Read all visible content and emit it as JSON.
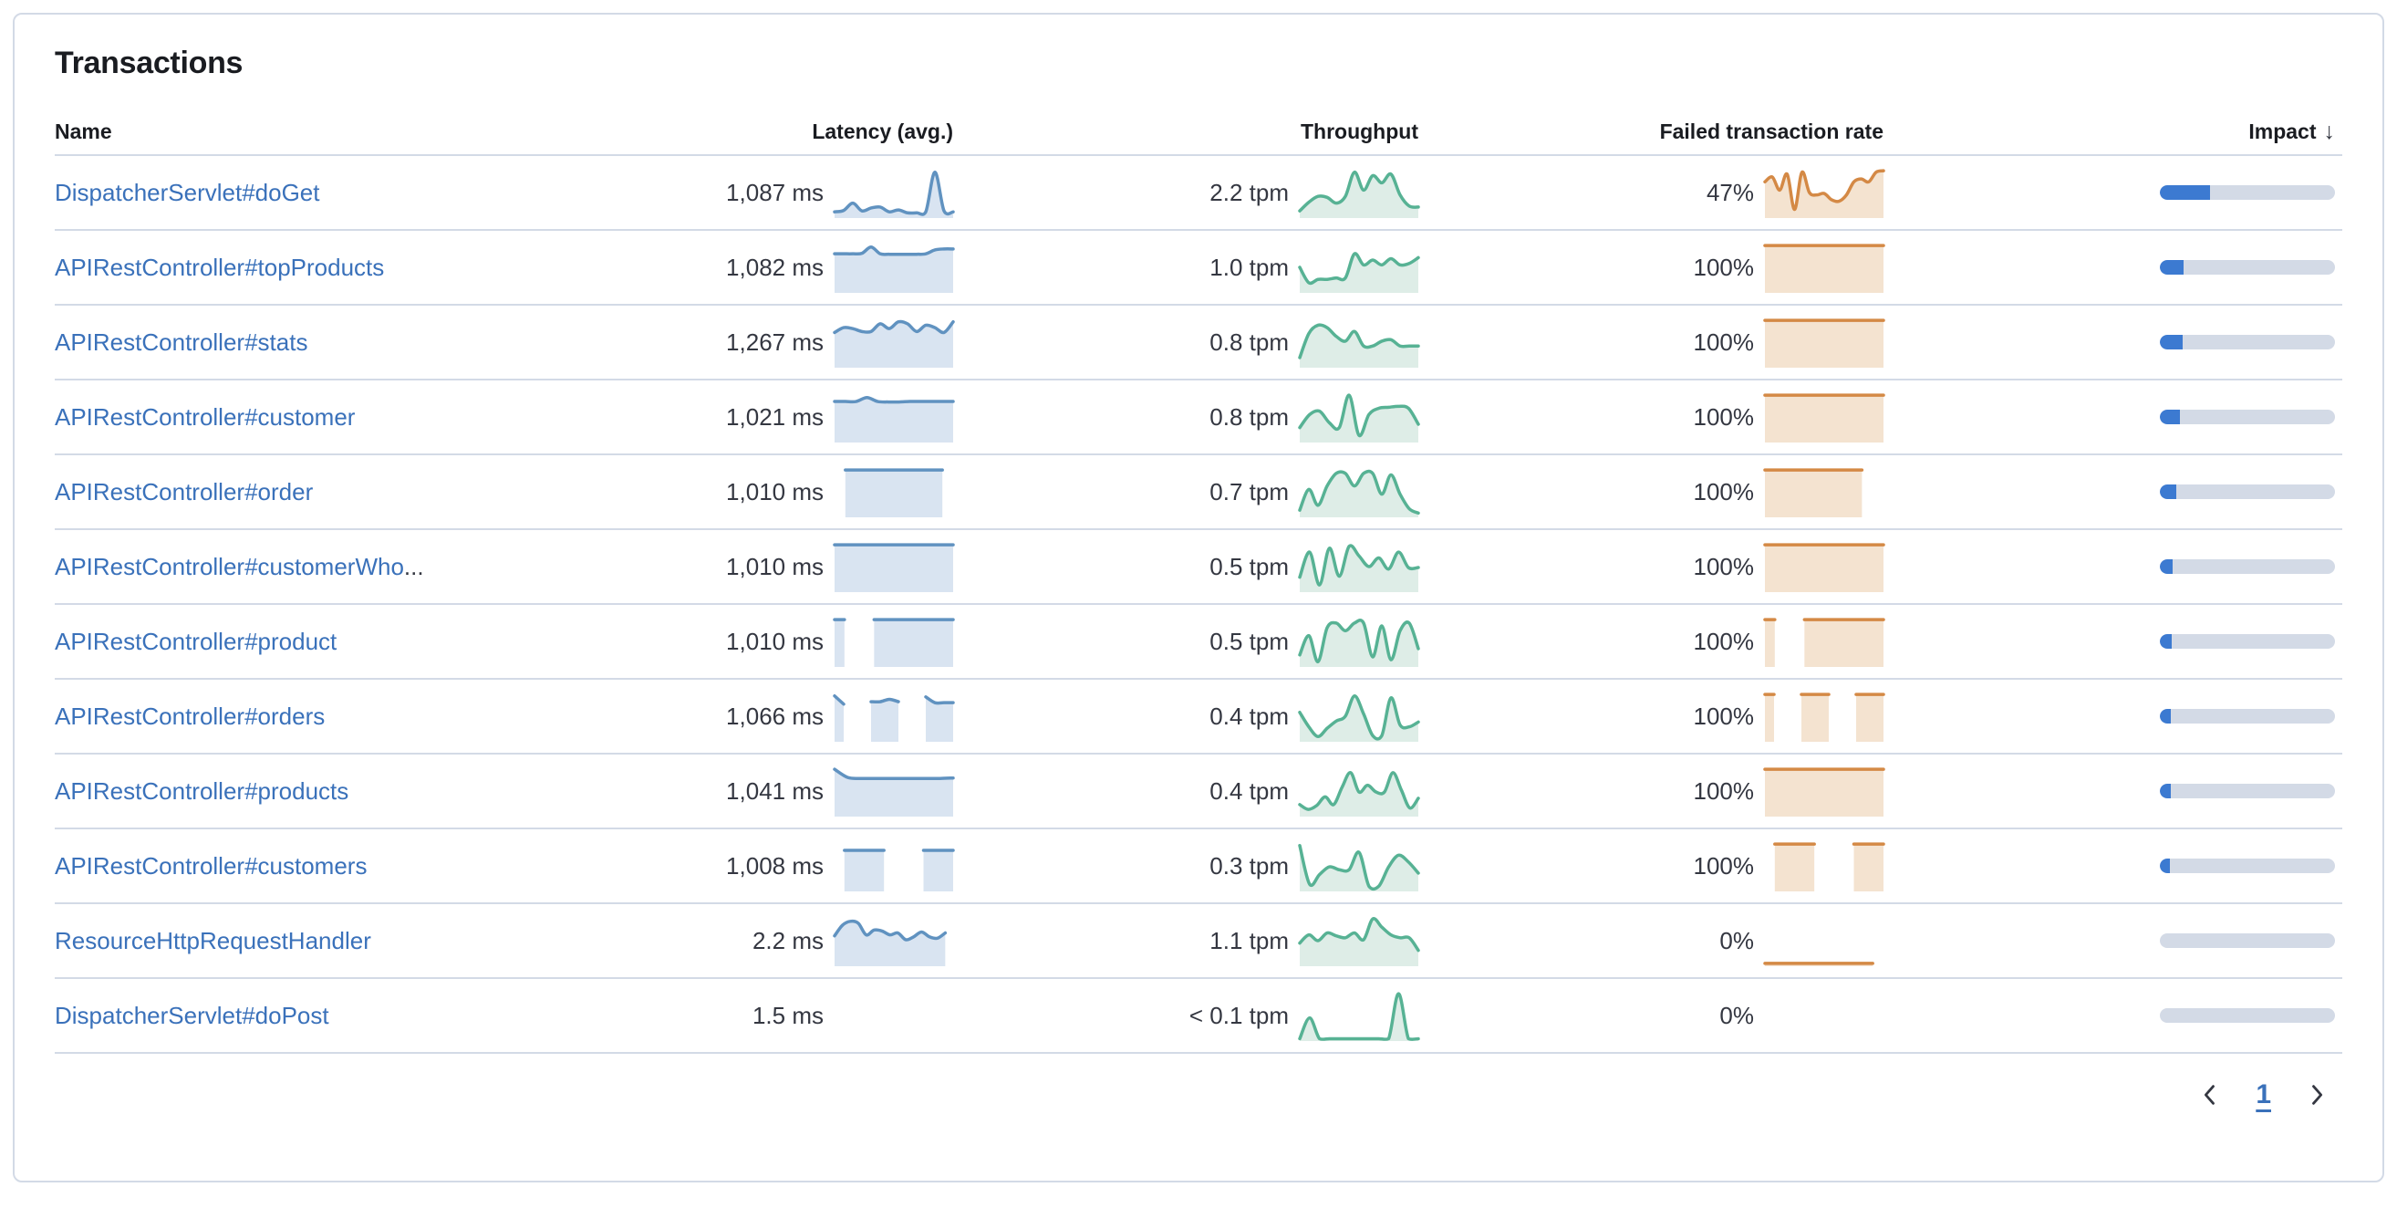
{
  "panel": {
    "title": "Transactions"
  },
  "icons": {
    "sort_descending": "↓",
    "prev_page": "chevron-left",
    "next_page": "chevron-right"
  },
  "colors": {
    "link": "#3A71BA",
    "latency_stroke": "#6092C0",
    "latency_fill": "#D9E4F1",
    "throughput_stroke": "#57B294",
    "throughput_fill": "#DEEDE7",
    "failed_stroke": "#D48945",
    "failed_fill": "#F4E3D0",
    "impact_fill": "#3C7AD1",
    "impact_track": "#D3DAE6"
  },
  "table": {
    "ellipsis": "...",
    "columns": [
      {
        "label": "Name"
      },
      {
        "label": "Latency (avg.)"
      },
      {
        "label": "Throughput"
      },
      {
        "label": "Failed transaction rate"
      },
      {
        "label": "Impact",
        "sorted": "descending"
      }
    ],
    "rows": [
      {
        "name": "DispatcherServlet#doGet",
        "truncated": false,
        "latency": "1,087 ms",
        "throughput": "2.2 tpm",
        "failed_rate": "47%",
        "impact": 0.285,
        "latency_spark": [
          0.1,
          0.13,
          0.28,
          0.12,
          0.18,
          0.2,
          0.1,
          0.14,
          0.08,
          0.08,
          0.1,
          0.92,
          0.12,
          0.1
        ],
        "throughput_spark": [
          0.12,
          0.3,
          0.42,
          0.4,
          0.28,
          0.42,
          0.92,
          0.55,
          0.85,
          0.7,
          0.88,
          0.45,
          0.22,
          0.2
        ],
        "failed_spark": [
          0.72,
          0.82,
          0.55,
          0.88,
          0.15,
          0.92,
          0.5,
          0.45,
          0.48,
          0.35,
          0.32,
          0.45,
          0.72,
          0.78,
          0.72,
          0.92,
          0.95
        ]
      },
      {
        "name": "APIRestController#topProducts",
        "truncated": false,
        "latency": "1,082 ms",
        "throughput": "1.0 tpm",
        "failed_rate": "100%",
        "impact": 0.135,
        "latency_spark": [
          0.78,
          0.78,
          0.78,
          0.79,
          0.92,
          0.78,
          0.77,
          0.77,
          0.77,
          0.77,
          0.78,
          0.86,
          0.88,
          0.88
        ],
        "throughput_spark": [
          0.5,
          0.18,
          0.25,
          0.25,
          0.28,
          0.28,
          0.78,
          0.55,
          0.65,
          0.55,
          0.68,
          0.55,
          0.58,
          0.7
        ],
        "failed_spark": [
          0.95,
          0.95,
          0.95,
          0.95,
          0.95,
          0.95,
          0.95,
          0.95,
          0.95,
          0.95,
          0.95,
          0.95
        ]
      },
      {
        "name": "APIRestController#stats",
        "truncated": false,
        "latency": "1,267 ms",
        "throughput": "0.8 tpm",
        "failed_rate": "100%",
        "impact": 0.13,
        "latency_spark": [
          0.7,
          0.8,
          0.78,
          0.72,
          0.72,
          0.88,
          0.78,
          0.92,
          0.88,
          0.72,
          0.85,
          0.8,
          0.7,
          0.92
        ],
        "throughput_spark": [
          0.18,
          0.68,
          0.85,
          0.8,
          0.62,
          0.52,
          0.72,
          0.42,
          0.42,
          0.52,
          0.55,
          0.42,
          0.42,
          0.42
        ],
        "failed_spark": [
          0.95,
          0.95,
          0.95,
          0.95,
          0.95,
          0.95,
          0.95,
          0.95,
          0.95,
          0.95,
          0.95,
          0.95
        ]
      },
      {
        "name": "APIRestController#customer",
        "truncated": false,
        "latency": "1,021 ms",
        "throughput": "0.8 tpm",
        "failed_rate": "100%",
        "impact": 0.115,
        "latency_spark": [
          0.82,
          0.82,
          0.82,
          0.9,
          0.82,
          0.81,
          0.81,
          0.82,
          0.82,
          0.82,
          0.82,
          0.82
        ],
        "throughput_spark": [
          0.28,
          0.55,
          0.62,
          0.38,
          0.28,
          0.95,
          0.12,
          0.55,
          0.68,
          0.7,
          0.72,
          0.68,
          0.35
        ],
        "failed_spark": [
          0.95,
          0.95,
          0.95,
          0.95,
          0.95,
          0.95,
          0.95,
          0.95,
          0.95,
          0.95,
          0.95,
          0.95
        ]
      },
      {
        "name": "APIRestController#order",
        "truncated": false,
        "latency": "1,010 ms",
        "throughput": "0.7 tpm",
        "failed_rate": "100%",
        "impact": 0.095,
        "latency_spark": [
          null,
          0.95,
          0.95,
          0.95,
          0.95,
          0.95,
          0.95,
          0.95,
          0.95,
          0.95,
          0.95,
          null
        ],
        "throughput_spark": [
          0.12,
          0.55,
          0.22,
          0.62,
          0.88,
          0.88,
          0.62,
          0.88,
          0.88,
          0.45,
          0.85,
          0.45,
          0.15,
          0.06
        ],
        "failed_spark": [
          0.95,
          0.95,
          0.95,
          0.95,
          0.95,
          0.95,
          0.95,
          0.95,
          0.95,
          0.95,
          null,
          null
        ]
      },
      {
        "name": "APIRestController#customerWho",
        "truncated": true,
        "latency": "1,010 ms",
        "throughput": "0.5 tpm",
        "failed_rate": "100%",
        "impact": 0.075,
        "latency_spark": [
          0.95,
          0.95,
          0.95,
          0.95,
          0.95,
          0.95,
          0.95,
          0.95,
          0.95,
          0.95
        ],
        "throughput_spark": [
          0.28,
          0.8,
          0.12,
          0.88,
          0.3,
          0.92,
          0.72,
          0.5,
          0.68,
          0.45,
          0.8,
          0.48,
          0.48
        ],
        "failed_spark": [
          0.95,
          0.95,
          0.95,
          0.95,
          0.95,
          0.95,
          0.95,
          0.95,
          0.95,
          0.95,
          0.95,
          0.95
        ]
      },
      {
        "name": "APIRestController#product",
        "truncated": false,
        "latency": "1,010 ms",
        "throughput": "0.5 tpm",
        "failed_rate": "100%",
        "impact": 0.07,
        "latency_spark": [
          0.95,
          0.95,
          null,
          null,
          0.95,
          0.95,
          0.95,
          0.95,
          0.95,
          0.95,
          0.95,
          0.95,
          0.95
        ],
        "throughput_spark": [
          0.22,
          0.62,
          0.08,
          0.78,
          0.88,
          0.72,
          0.88,
          0.88,
          0.18,
          0.82,
          0.12,
          0.72,
          0.88,
          0.35
        ],
        "failed_spark": [
          0.95,
          0.95,
          null,
          null,
          0.95,
          0.95,
          0.95,
          0.95,
          0.95,
          0.95,
          0.95,
          0.95,
          0.95
        ]
      },
      {
        "name": "APIRestController#orders",
        "truncated": false,
        "latency": "1,066 ms",
        "throughput": "0.4 tpm",
        "failed_rate": "100%",
        "impact": 0.065,
        "latency_spark": [
          0.92,
          0.75,
          null,
          null,
          0.8,
          0.8,
          0.85,
          0.8,
          null,
          null,
          0.9,
          0.78,
          0.78,
          0.78
        ],
        "throughput_spark": [
          0.58,
          0.28,
          0.08,
          0.25,
          0.4,
          0.5,
          0.92,
          0.55,
          0.1,
          0.1,
          0.88,
          0.32,
          0.28,
          0.38
        ],
        "failed_spark": [
          0.95,
          0.95,
          null,
          null,
          0.95,
          0.95,
          0.95,
          0.95,
          null,
          null,
          0.95,
          0.95,
          0.95,
          0.95
        ]
      },
      {
        "name": "APIRestController#products",
        "truncated": false,
        "latency": "1,041 ms",
        "throughput": "0.4 tpm",
        "failed_rate": "100%",
        "impact": 0.06,
        "latency_spark": [
          0.95,
          0.78,
          0.76,
          0.76,
          0.76,
          0.76,
          0.76,
          0.76,
          0.76,
          0.77
        ],
        "throughput_spark": [
          0.22,
          0.12,
          0.2,
          0.38,
          0.22,
          0.58,
          0.88,
          0.48,
          0.62,
          0.48,
          0.48,
          0.88,
          0.52,
          0.15,
          0.35
        ],
        "failed_spark": [
          0.95,
          0.95,
          0.95,
          0.95,
          0.95,
          0.95,
          0.95,
          0.95,
          0.95,
          0.95,
          0.95,
          0.95
        ]
      },
      {
        "name": "APIRestController#customers",
        "truncated": false,
        "latency": "1,008 ms",
        "throughput": "0.3 tpm",
        "failed_rate": "100%",
        "impact": 0.055,
        "latency_spark": [
          null,
          0.82,
          0.82,
          0.82,
          0.82,
          0.82,
          null,
          null,
          null,
          0.82,
          0.82,
          0.82,
          0.82
        ],
        "throughput_spark": [
          0.92,
          0.12,
          0.32,
          0.48,
          0.42,
          0.42,
          0.78,
          0.08,
          0.08,
          0.48,
          0.72,
          0.58,
          0.35
        ],
        "failed_spark": [
          null,
          0.95,
          0.95,
          0.95,
          0.95,
          0.95,
          null,
          null,
          null,
          0.95,
          0.95,
          0.95,
          0.95
        ]
      },
      {
        "name": "ResourceHttpRequestHandler",
        "truncated": false,
        "latency": "2.2 ms",
        "throughput": "1.1 tpm",
        "failed_rate": "0%",
        "impact": 0,
        "latency_spark": [
          0.6,
          0.82,
          0.9,
          0.86,
          0.62,
          0.72,
          0.7,
          0.62,
          0.66,
          0.52,
          0.58,
          0.68,
          0.58,
          0.55,
          0.66,
          null
        ],
        "throughput_spark": [
          0.45,
          0.62,
          0.5,
          0.66,
          0.6,
          0.56,
          0.66,
          0.52,
          0.95,
          0.78,
          0.62,
          0.56,
          0.56,
          0.3
        ],
        "failed_spark": [
          0.03,
          0.03,
          0.03,
          0.03,
          0.03,
          0.03,
          0.03,
          0.03,
          0.03,
          0.03,
          0.03,
          null
        ]
      },
      {
        "name": "DispatcherServlet#doPost",
        "truncated": false,
        "latency": "1.5 ms",
        "throughput": "< 0.1 tpm",
        "failed_rate": "0%",
        "impact": 0,
        "latency_spark": [],
        "throughput_spark": [
          0.02,
          0.45,
          0.02,
          0.02,
          0.02,
          0.02,
          0.02,
          0.02,
          0.02,
          0.02,
          0.95,
          0.02,
          0.02
        ],
        "failed_spark": []
      }
    ]
  },
  "pagination": {
    "current_page": "1"
  }
}
